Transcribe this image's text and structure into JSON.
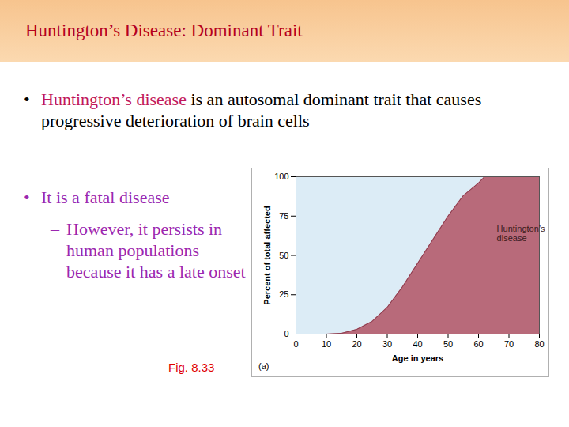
{
  "slide": {
    "title": "Huntington’s Disease: Dominant Trait",
    "bullets": [
      {
        "highlight": "Huntington’s disease",
        "text": " is an autosomal dominant trait that causes progressive deterioration of brain cells"
      },
      {
        "text": "It is a fatal disease",
        "sub": "However, it persists in human populations because it has a late onset"
      }
    ],
    "figure_label": "Fig. 8.33"
  },
  "chart_data": {
    "type": "area",
    "panel_label": "(a)",
    "x_label": "Age in years",
    "y_label": "Percent of total affected",
    "x": [
      0,
      10,
      15,
      20,
      25,
      30,
      35,
      40,
      45,
      50,
      55,
      60,
      62,
      70,
      80
    ],
    "values": [
      0,
      0,
      0.5,
      3,
      8,
      17,
      30,
      45,
      60,
      75,
      88,
      96,
      100,
      100,
      100
    ],
    "color": "#b86a7a",
    "annotation": {
      "text": "Huntington’s\ndisease",
      "x": 66,
      "y": 64
    },
    "xlim": [
      0,
      80
    ],
    "xticks": [
      0,
      10,
      20,
      30,
      40,
      50,
      60,
      70,
      80
    ],
    "ylim": [
      0,
      100
    ],
    "yticks": [
      0,
      25,
      50,
      75,
      100
    ],
    "grid": false
  }
}
